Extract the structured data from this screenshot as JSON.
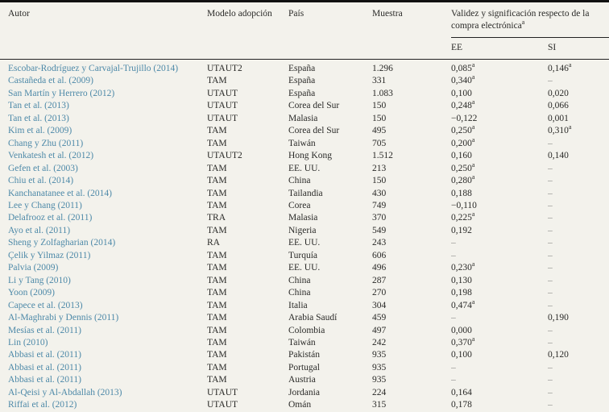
{
  "colors": {
    "background": "#f3f2ec",
    "text": "#2a2a28",
    "author_link_blue": "#4d89a8",
    "dash_grey": "#8a8a86",
    "rule_black": "#111111"
  },
  "table": {
    "dash": "–",
    "sup_marker": "a",
    "columns": {
      "autor": "Autor",
      "modelo": "Modelo adopción",
      "pais": "País",
      "muestra": "Muestra"
    },
    "group_header": "Validez y significación respecto de la compra electrónica",
    "group_header_sup": "a",
    "subcolumns": {
      "ee": "EE",
      "si": "SI"
    },
    "rows": [
      {
        "autor": "Escobar-Rodríguez y Carvajal-Trujillo (2014)",
        "modelo": "UTAUT2",
        "pais": "España",
        "muestra": "1.296",
        "ee": "0,085",
        "ee_sup": true,
        "si": "0,146",
        "si_sup": true
      },
      {
        "autor": "Castañeda et al. (2009)",
        "modelo": "TAM",
        "pais": "España",
        "muestra": "331",
        "ee": "0,340",
        "ee_sup": true,
        "si": "–"
      },
      {
        "autor": "San Martín y Herrero (2012)",
        "modelo": "UTAUT",
        "pais": "España",
        "muestra": "1.083",
        "ee": "0,100",
        "si": "0,020"
      },
      {
        "autor": "Tan et al. (2013)",
        "modelo": "UTAUT",
        "pais": "Corea del Sur",
        "muestra": "150",
        "ee": "0,248",
        "ee_sup": true,
        "si": "0,066"
      },
      {
        "autor": "Tan et al. (2013)",
        "modelo": "UTAUT",
        "pais": "Malasia",
        "muestra": "150",
        "ee": "−0,122",
        "si": "0,001"
      },
      {
        "autor": "Kim et al. (2009)",
        "modelo": "TAM",
        "pais": "Corea del Sur",
        "muestra": "495",
        "ee": "0,250",
        "ee_sup": true,
        "si": "0,310",
        "si_sup": true
      },
      {
        "autor": "Chang y Zhu (2011)",
        "modelo": "TAM",
        "pais": "Taiwán",
        "muestra": "705",
        "ee": "0,200",
        "ee_sup": true,
        "si": "–"
      },
      {
        "autor": "Venkatesh et al. (2012)",
        "modelo": "UTAUT2",
        "pais": "Hong Kong",
        "muestra": "1.512",
        "ee": "0,160",
        "si": "0,140"
      },
      {
        "autor": "Gefen et al. (2003)",
        "modelo": "TAM",
        "pais": "EE. UU.",
        "muestra": "213",
        "ee": "0,250",
        "ee_sup": true,
        "si": "–"
      },
      {
        "autor": "Chiu et al. (2014)",
        "modelo": "TAM",
        "pais": "China",
        "muestra": "150",
        "ee": "0,280",
        "ee_sup": true,
        "si": "–"
      },
      {
        "autor": "Kanchanatanee et al. (2014)",
        "modelo": "TAM",
        "pais": "Tailandia",
        "muestra": "430",
        "ee": "0,188",
        "si": "–"
      },
      {
        "autor": "Lee y Chang (2011)",
        "modelo": "TAM",
        "pais": "Corea",
        "muestra": "749",
        "ee": "−0,110",
        "si": "–"
      },
      {
        "autor": "Delafrooz et al. (2011)",
        "modelo": "TRA",
        "pais": "Malasia",
        "muestra": "370",
        "ee": "0,225",
        "ee_sup": true,
        "si": "–"
      },
      {
        "autor": "Ayo et al. (2011)",
        "modelo": "TAM",
        "pais": "Nigeria",
        "muestra": "549",
        "ee": "0,192",
        "si": "–"
      },
      {
        "autor": "Sheng y Zolfagharian (2014)",
        "modelo": "RA",
        "pais": "EE. UU.",
        "muestra": "243",
        "ee": "–",
        "si": "–"
      },
      {
        "autor": "Çelik y Yilmaz (2011)",
        "modelo": "TAM",
        "pais": "Turquía",
        "muestra": "606",
        "ee": "–",
        "si": "–"
      },
      {
        "autor": "Palvia (2009)",
        "modelo": "TAM",
        "pais": "EE. UU.",
        "muestra": "496",
        "ee": "0,230",
        "ee_sup": true,
        "si": "–"
      },
      {
        "autor": "Li y Tang (2010)",
        "modelo": "TAM",
        "pais": "China",
        "muestra": "287",
        "ee": "0,130",
        "si": "–"
      },
      {
        "autor": "Yoon (2009)",
        "modelo": "TAM",
        "pais": "China",
        "muestra": "270",
        "ee": "0,198",
        "si": "–"
      },
      {
        "autor": "Capece et al. (2013)",
        "modelo": "TAM",
        "pais": "Italia",
        "muestra": "304",
        "ee": "0,474",
        "ee_sup": true,
        "si": "–"
      },
      {
        "autor": "Al-Maghrabi y Dennis (2011)",
        "modelo": "TAM",
        "pais": "Arabia Saudí",
        "muestra": "459",
        "ee": "–",
        "si": "0,190"
      },
      {
        "autor": "Mesías et al. (2011)",
        "modelo": "TAM",
        "pais": "Colombia",
        "muestra": "497",
        "ee": "0,000",
        "si": "–"
      },
      {
        "autor": "Lin (2010)",
        "modelo": "TAM",
        "pais": "Taiwán",
        "muestra": "242",
        "ee": "0,370",
        "ee_sup": true,
        "si": "–"
      },
      {
        "autor": "Abbasi et al. (2011)",
        "modelo": "TAM",
        "pais": "Pakistán",
        "muestra": "935",
        "ee": "0,100",
        "si": "0,120"
      },
      {
        "autor": "Abbasi et al. (2011)",
        "modelo": "TAM",
        "pais": "Portugal",
        "muestra": "935",
        "ee": "–",
        "si": "–"
      },
      {
        "autor": "Abbasi et al. (2011)",
        "modelo": "TAM",
        "pais": "Austria",
        "muestra": "935",
        "ee": "–",
        "si": "–"
      },
      {
        "autor": "Al-Qeisi y Al-Abdallah (2013)",
        "modelo": "UTAUT",
        "pais": "Jordania",
        "muestra": "224",
        "ee": "0,164",
        "si": "–"
      },
      {
        "autor": "Riffai et al. (2012)",
        "modelo": "UTAUT",
        "pais": "Omán",
        "muestra": "315",
        "ee": "0,178",
        "si": "–"
      }
    ]
  }
}
